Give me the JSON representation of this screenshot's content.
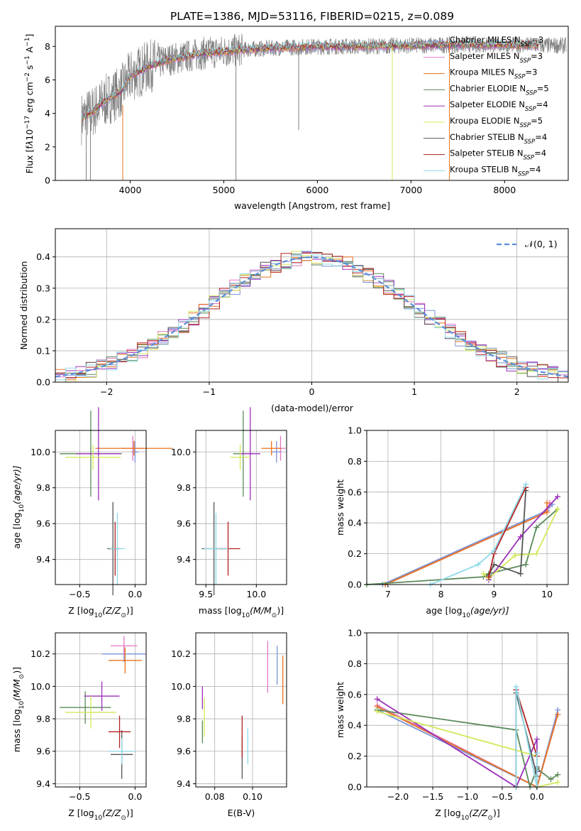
{
  "figure": {
    "title": "PLATE=1386, MJD=53116, FIBERID=0215, z=0.089"
  },
  "colors": {
    "Chabrier MILES": "#7b93d8",
    "Salpeter MILES": "#e377c2",
    "Kroupa MILES": "#e8731f",
    "Chabrier ELODIE": "#5a8a5a",
    "Salpeter ELODIE": "#9b30b8",
    "Kroupa ELODIE": "#d4e85a",
    "Chabrier STELIB": "#555555",
    "Salpeter STELIB": "#b22222",
    "Kroupa STELIB": "#8fd9e8",
    "data": "#808080",
    "normal": "#5b8fd9"
  },
  "chart_data": [
    {
      "id": "spectrum",
      "type": "line",
      "xlabel": "wavelength [Angstrom, rest frame]",
      "ylabel_parts": [
        "Flux [f",
        "λ",
        "10",
        "−17",
        " erg cm",
        "−2",
        " s",
        "−1",
        " A",
        "−1",
        "]"
      ],
      "xlim": [
        3200,
        8680
      ],
      "ylim": [
        0,
        9.2
      ],
      "xticks": [
        4000,
        5000,
        6000,
        7000,
        8000
      ],
      "yticks": [
        0,
        2,
        4,
        6,
        8
      ],
      "legend": [
        {
          "model": "Chabrier MILES",
          "nssp": 3
        },
        {
          "model": "Salpeter MILES",
          "nssp": 3
        },
        {
          "model": "Kroupa MILES",
          "nssp": 3
        },
        {
          "model": "Chabrier ELODIE",
          "nssp": 5
        },
        {
          "model": "Salpeter ELODIE",
          "nssp": 4
        },
        {
          "model": "Kroupa ELODIE",
          "nssp": 5
        },
        {
          "model": "Chabrier STELIB",
          "nssp": 4
        },
        {
          "model": "Salpeter STELIB",
          "nssp": 4
        },
        {
          "model": "Kroupa STELIB",
          "nssp": 4
        }
      ],
      "legend_prefix": "N",
      "legend_sub": "SSP",
      "continuum": [
        [
          3480,
          3.7
        ],
        [
          3600,
          4.1
        ],
        [
          3700,
          4.6
        ],
        [
          3800,
          5.0
        ],
        [
          3900,
          5.3
        ],
        [
          4000,
          6.2
        ],
        [
          4200,
          6.8
        ],
        [
          4400,
          7.2
        ],
        [
          4600,
          7.4
        ],
        [
          4800,
          7.6
        ],
        [
          5000,
          7.7
        ],
        [
          5200,
          7.8
        ],
        [
          5500,
          7.9
        ],
        [
          6000,
          8.0
        ],
        [
          6500,
          8.0
        ],
        [
          7000,
          8.05
        ],
        [
          7500,
          8.1
        ],
        [
          8000,
          8.1
        ],
        [
          8400,
          8.05
        ]
      ],
      "data_range": [
        3480,
        8660
      ],
      "spikes": [
        {
          "x": 3530,
          "y0": 0,
          "y1": 4.2,
          "model": "data"
        },
        {
          "x": 3575,
          "y0": 0,
          "y1": 4.0,
          "model": "data"
        },
        {
          "x": 3920,
          "y0": 0,
          "y1": 4.5,
          "model": "Kroupa MILES"
        },
        {
          "x": 5130,
          "y0": 0,
          "y1": 7.5,
          "model": "data"
        },
        {
          "x": 5800,
          "y0": 3.0,
          "y1": 7.8,
          "model": "data"
        },
        {
          "x": 6800,
          "y0": 0,
          "y1": 8.0,
          "model": "Kroupa ELODIE"
        },
        {
          "x": 7410,
          "y0": 0,
          "y1": 8.3,
          "model": "Kroupa MILES"
        }
      ]
    },
    {
      "id": "residuals",
      "type": "histogram",
      "xlabel": "(data-model)/error",
      "ylabel": "Normed distribution",
      "xlim": [
        -2.5,
        2.5
      ],
      "ylim": [
        0,
        0.49
      ],
      "xticks": [
        -2,
        -1,
        0,
        1,
        2
      ],
      "yticks": [
        0.0,
        0.1,
        0.2,
        0.3,
        0.4
      ],
      "bin_width": 0.1,
      "legend": "𝒩(0, 1)",
      "models": [
        "Chabrier MILES",
        "Salpeter MILES",
        "Kroupa MILES",
        "Chabrier ELODIE",
        "Salpeter ELODIE",
        "Kroupa ELODIE",
        "Chabrier STELIB",
        "Salpeter STELIB",
        "Kroupa STELIB"
      ]
    },
    {
      "id": "age_vs_Z",
      "type": "errorbar",
      "xlabel_parts": [
        "Z [log",
        "10",
        "(Z/Z",
        "⊙",
        ")]"
      ],
      "ylabel_parts": [
        "age  [log",
        "10",
        "(age/yr)]"
      ],
      "xlim": [
        -0.72,
        0.1
      ],
      "ylim": [
        9.26,
        10.12
      ],
      "xticks": [
        -0.5,
        0.0
      ],
      "yticks": [
        9.4,
        9.6,
        9.8,
        10.0
      ],
      "points": [
        {
          "model": "Chabrier MILES",
          "x": 0.0,
          "xerr": 0.03,
          "y": 10.0,
          "yerr": 0.06
        },
        {
          "model": "Salpeter MILES",
          "x": -0.02,
          "xerr": 0.1,
          "y": 10.02,
          "yerr": 0.07
        },
        {
          "model": "Kroupa MILES",
          "x": -0.01,
          "xerr": 0.35,
          "y": 10.02,
          "yerr": 0.04
        },
        {
          "model": "Chabrier ELODIE",
          "x": -0.4,
          "xerr": 0.28,
          "y": 9.99,
          "yerr": 0.24
        },
        {
          "model": "Salpeter ELODIE",
          "x": -0.33,
          "xerr": 0.2,
          "y": 9.99,
          "yerr": 0.26
        },
        {
          "model": "Kroupa ELODIE",
          "x": -0.38,
          "xerr": 0.25,
          "y": 9.97,
          "yerr": 0.07
        },
        {
          "model": "Chabrier STELIB",
          "x": -0.2,
          "xerr": 0.05,
          "y": 9.46,
          "yerr": 0.26
        },
        {
          "model": "Salpeter STELIB",
          "x": -0.18,
          "xerr": 0.05,
          "y": 9.46,
          "yerr": 0.15
        },
        {
          "model": "Kroupa STELIB",
          "x": -0.16,
          "xerr": 0.07,
          "y": 9.46,
          "yerr": 0.2
        }
      ]
    },
    {
      "id": "age_vs_mass",
      "type": "errorbar",
      "xlabel_parts": [
        "mass [log",
        "10",
        "(M/M",
        "⊙",
        ")]"
      ],
      "xlim": [
        9.4,
        10.3
      ],
      "ylim": [
        9.26,
        10.12
      ],
      "xticks": [
        9.5,
        10.0
      ],
      "yticks": [
        9.4,
        9.6,
        9.8,
        10.0
      ],
      "points": [
        {
          "model": "Chabrier MILES",
          "x": 10.2,
          "xerr": 0.05,
          "y": 10.0,
          "yerr": 0.06
        },
        {
          "model": "Salpeter MILES",
          "x": 10.24,
          "xerr": 0.05,
          "y": 10.02,
          "yerr": 0.07
        },
        {
          "model": "Kroupa MILES",
          "x": 10.15,
          "xerr": 0.1,
          "y": 10.02,
          "yerr": 0.04
        },
        {
          "model": "Chabrier ELODIE",
          "x": 9.87,
          "xerr": 0.1,
          "y": 9.99,
          "yerr": 0.24
        },
        {
          "model": "Salpeter ELODIE",
          "x": 9.94,
          "xerr": 0.1,
          "y": 9.99,
          "yerr": 0.26
        },
        {
          "model": "Kroupa ELODIE",
          "x": 9.84,
          "xerr": 0.1,
          "y": 9.97,
          "yerr": 0.07
        },
        {
          "model": "Chabrier STELIB",
          "x": 9.58,
          "xerr": 0.12,
          "y": 9.46,
          "yerr": 0.26
        },
        {
          "model": "Salpeter STELIB",
          "x": 9.72,
          "xerr": 0.12,
          "y": 9.46,
          "yerr": 0.15
        },
        {
          "model": "Kroupa STELIB",
          "x": 9.6,
          "xerr": 0.12,
          "y": 9.46,
          "yerr": 0.2
        }
      ]
    },
    {
      "id": "weight_vs_age",
      "type": "line",
      "xlabel_parts": [
        "age  [log",
        "10",
        "(age/yr)]"
      ],
      "ylabel": "mass weight",
      "xlim": [
        6.6,
        10.4
      ],
      "ylim": [
        0,
        1.0
      ],
      "xticks": [
        7,
        8,
        9,
        10
      ],
      "yticks": [
        0.0,
        0.2,
        0.4,
        0.6,
        0.8,
        1.0
      ],
      "series": [
        {
          "model": "Chabrier MILES",
          "x": [
            6.9,
            10.0,
            10.1
          ],
          "y": [
            0.0,
            0.48,
            0.52
          ]
        },
        {
          "model": "Salpeter MILES",
          "x": [
            6.95,
            10.0,
            10.05
          ],
          "y": [
            0.0,
            0.47,
            0.53
          ]
        },
        {
          "model": "Kroupa MILES",
          "x": [
            6.95,
            10.0,
            10.0
          ],
          "y": [
            0.0,
            0.47,
            0.53
          ]
        },
        {
          "model": "Chabrier ELODIE",
          "x": [
            6.6,
            8.8,
            8.9,
            9.6,
            9.8,
            10.2
          ],
          "y": [
            0.0,
            0.05,
            0.07,
            0.13,
            0.37,
            0.49
          ]
        },
        {
          "model": "Salpeter ELODIE",
          "x": [
            8.9,
            9.5,
            10.2
          ],
          "y": [
            0.03,
            0.31,
            0.57
          ]
        },
        {
          "model": "Kroupa ELODIE",
          "x": [
            8.8,
            8.9,
            9.4,
            9.8,
            10.2
          ],
          "y": [
            0.07,
            0.04,
            0.19,
            0.2,
            0.49
          ]
        },
        {
          "model": "Chabrier STELIB",
          "x": [
            8.9,
            9.0,
            9.5,
            9.6
          ],
          "y": [
            0.06,
            0.13,
            0.07,
            0.61
          ]
        },
        {
          "model": "Salpeter STELIB",
          "x": [
            8.9,
            9.0,
            9.6
          ],
          "y": [
            0.05,
            0.2,
            0.63
          ]
        },
        {
          "model": "Kroupa STELIB",
          "x": [
            7.8,
            8.7,
            9.0,
            9.6
          ],
          "y": [
            0.0,
            0.13,
            0.22,
            0.65
          ]
        }
      ]
    },
    {
      "id": "mass_vs_Z",
      "type": "errorbar",
      "xlabel_parts": [
        "Z [log",
        "10",
        "(Z/Z",
        "⊙",
        ")]"
      ],
      "ylabel_parts": [
        "mass [log",
        "10",
        "(M/M",
        "⊙",
        ")]"
      ],
      "xlim": [
        -0.72,
        0.1
      ],
      "ylim": [
        9.38,
        10.33
      ],
      "xticks": [
        -0.5,
        0.0
      ],
      "yticks": [
        9.4,
        9.6,
        9.8,
        10.0,
        10.2
      ],
      "points": [
        {
          "model": "Chabrier MILES",
          "x": -0.1,
          "xerr": 0.2,
          "y": 10.2,
          "yerr": 0.05
        },
        {
          "model": "Salpeter MILES",
          "x": -0.1,
          "xerr": 0.12,
          "y": 10.25,
          "yerr": 0.06
        },
        {
          "model": "Kroupa MILES",
          "x": -0.09,
          "xerr": 0.15,
          "y": 10.16,
          "yerr": 0.08
        },
        {
          "model": "Chabrier ELODIE",
          "x": -0.45,
          "xerr": 0.23,
          "y": 9.87,
          "yerr": 0.1
        },
        {
          "model": "Salpeter ELODIE",
          "x": -0.3,
          "xerr": 0.16,
          "y": 9.94,
          "yerr": 0.09
        },
        {
          "model": "Kroupa ELODIE",
          "x": -0.4,
          "xerr": 0.23,
          "y": 9.84,
          "yerr": 0.1
        },
        {
          "model": "Chabrier STELIB",
          "x": -0.12,
          "xerr": 0.1,
          "y": 9.58,
          "yerr": 0.15
        },
        {
          "model": "Salpeter STELIB",
          "x": -0.14,
          "xerr": 0.1,
          "y": 9.72,
          "yerr": 0.1
        },
        {
          "model": "Kroupa STELIB",
          "x": -0.12,
          "xerr": 0.12,
          "y": 9.6,
          "yerr": 0.08
        }
      ]
    },
    {
      "id": "mass_vs_ebv",
      "type": "errorbar",
      "xlabel": "E(B-V)",
      "xlim": [
        0.07,
        0.118
      ],
      "ylim": [
        9.38,
        10.33
      ],
      "xticks": [
        0.08,
        0.1
      ],
      "yticks": [
        9.4,
        9.6,
        9.8,
        10.0,
        10.2
      ],
      "points": [
        {
          "model": "Chabrier MILES",
          "x": 0.113,
          "xerr": 0.0,
          "y": 10.13,
          "yerr": 0.12
        },
        {
          "model": "Salpeter MILES",
          "x": 0.108,
          "xerr": 0.0,
          "y": 10.12,
          "yerr": 0.16
        },
        {
          "model": "Kroupa MILES",
          "x": 0.116,
          "xerr": 0.0,
          "y": 10.04,
          "yerr": 0.15
        },
        {
          "model": "Chabrier ELODIE",
          "x": 0.0735,
          "xerr": 0.0,
          "y": 9.72,
          "yerr": 0.07
        },
        {
          "model": "Salpeter ELODIE",
          "x": 0.0735,
          "xerr": 0.0,
          "y": 9.93,
          "yerr": 0.07
        },
        {
          "model": "Kroupa ELODIE",
          "x": 0.0745,
          "xerr": 0.0,
          "y": 9.81,
          "yerr": 0.12
        },
        {
          "model": "Chabrier STELIB",
          "x": 0.0945,
          "xerr": 0.0,
          "y": 9.56,
          "yerr": 0.13
        },
        {
          "model": "Salpeter STELIB",
          "x": 0.0945,
          "xerr": 0.0,
          "y": 9.69,
          "yerr": 0.13
        },
        {
          "model": "Kroupa STELIB",
          "x": 0.0975,
          "xerr": 0.0,
          "y": 9.63,
          "yerr": 0.11
        }
      ]
    },
    {
      "id": "weight_vs_Z",
      "type": "line",
      "xlabel_parts": [
        "Z [log",
        "10",
        "(Z/Z",
        "⊙",
        ")]"
      ],
      "ylabel": "mass weight",
      "xlim": [
        -2.45,
        0.45
      ],
      "ylim": [
        0,
        1.0
      ],
      "xticks": [
        -2.0,
        -1.5,
        -1.0,
        -0.5,
        0.0
      ],
      "yticks": [
        0.0,
        0.2,
        0.4,
        0.6,
        0.8,
        1.0
      ],
      "series": [
        {
          "model": "Chabrier MILES",
          "x": [
            -2.3,
            0.0,
            0.3
          ],
          "y": [
            0.5,
            0.0,
            0.5
          ]
        },
        {
          "model": "Salpeter MILES",
          "x": [
            -2.3,
            0.0,
            0.3
          ],
          "y": [
            0.53,
            0.0,
            0.47
          ]
        },
        {
          "model": "Kroupa MILES",
          "x": [
            -2.3,
            0.0,
            0.3
          ],
          "y": [
            0.52,
            0.0,
            0.47
          ]
        },
        {
          "model": "Chabrier ELODIE",
          "x": [
            -2.3,
            -0.3,
            -0.1,
            0.0,
            0.2,
            0.3
          ],
          "y": [
            0.5,
            0.37,
            0.0,
            0.12,
            0.05,
            0.08
          ]
        },
        {
          "model": "Salpeter ELODIE",
          "x": [
            -2.3,
            -0.3,
            0.0,
            0.0
          ],
          "y": [
            0.57,
            0.0,
            0.31,
            0.1
          ]
        },
        {
          "model": "Kroupa ELODIE",
          "x": [
            -2.3,
            0.0,
            0.0,
            0.3
          ],
          "y": [
            0.49,
            0.2,
            0.0,
            0.03
          ]
        },
        {
          "model": "Chabrier STELIB",
          "x": [
            -0.3,
            -0.3,
            0.0,
            0.0
          ],
          "y": [
            0.0,
            0.61,
            0.07,
            0.13
          ]
        },
        {
          "model": "Salpeter STELIB",
          "x": [
            -0.3,
            -0.3,
            0.0
          ],
          "y": [
            0.0,
            0.63,
            0.2
          ]
        },
        {
          "model": "Kroupa STELIB",
          "x": [
            -0.3,
            -0.3,
            0.0,
            0.0
          ],
          "y": [
            0.0,
            0.65,
            0.0,
            0.22
          ]
        }
      ]
    }
  ]
}
